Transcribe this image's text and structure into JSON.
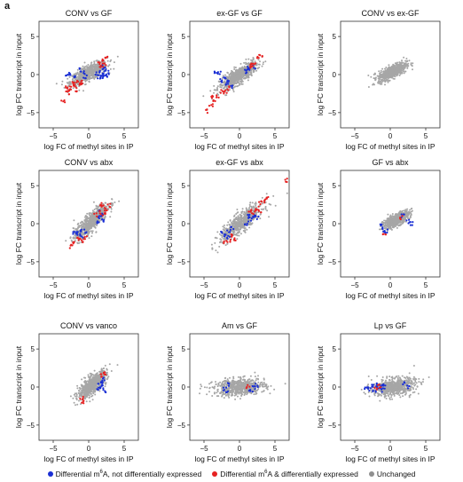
{
  "panel_label": "a",
  "chart_data": [
    {
      "type": "scatter",
      "title": "CONV vs GF",
      "xlabel": "log FC of methyl sites in IP",
      "ylabel": "log FC transcript in input",
      "xlim": [
        -7,
        7
      ],
      "ylim": [
        -7,
        7
      ],
      "xticks": [
        -5,
        0,
        5
      ],
      "yticks": [
        -5,
        0,
        5
      ],
      "series": [
        {
          "name": "Unchanged",
          "cloud": {
            "cx": 0,
            "cy": 0.2,
            "sx": 1.3,
            "sy": 0.75,
            "corr": 0.75
          }
        },
        {
          "name": "Differential m6A, not differentially expressed",
          "points": [
            [
              1.6,
              0.4
            ],
            [
              2,
              0.2
            ],
            [
              1.8,
              -0.2
            ],
            [
              2.2,
              0.6
            ],
            [
              1.5,
              -0.5
            ],
            [
              2.4,
              -0.1
            ],
            [
              -0.8,
              0.3
            ],
            [
              -1.2,
              0.6
            ],
            [
              -2.6,
              0.1
            ],
            [
              -1.9,
              -0.3
            ],
            [
              1.2,
              0.1
            ],
            [
              2.1,
              1
            ],
            [
              2.6,
              0.3
            ],
            [
              -3,
              -0.2
            ],
            [
              -0.5,
              -0.3
            ],
            [
              1.9,
              -0.4
            ]
          ]
        },
        {
          "name": "Differential m6A & differentially expressed",
          "points": [
            [
              -3.6,
              -3.4
            ],
            [
              -3,
              -2.4
            ],
            [
              -2.5,
              -1.8
            ],
            [
              -2.2,
              -1.2
            ],
            [
              -2,
              -1.6
            ],
            [
              -1.5,
              -1
            ],
            [
              -1.2,
              -1.3
            ],
            [
              -1.8,
              -2
            ],
            [
              -2.8,
              -2.2
            ],
            [
              1.5,
              1.5
            ],
            [
              2,
              1.8
            ],
            [
              2.5,
              2.2
            ],
            [
              1.8,
              1.2
            ],
            [
              2.2,
              1.5
            ],
            [
              -3.2,
              -1.6
            ],
            [
              -1,
              -0.9
            ]
          ]
        }
      ]
    },
    {
      "type": "scatter",
      "title": "ex-GF vs GF",
      "xlabel": "log FC of methyl sites in IP",
      "ylabel": "log FC transcript in input",
      "xlim": [
        -7,
        7
      ],
      "ylim": [
        -7,
        7
      ],
      "xticks": [
        -5,
        0,
        5
      ],
      "yticks": [
        -5,
        0,
        5
      ],
      "series": [
        {
          "name": "Unchanged",
          "cloud": {
            "cx": -0.2,
            "cy": -0.2,
            "sx": 1.3,
            "sy": 0.9,
            "corr": 0.8
          }
        },
        {
          "name": "Differential m6A, not differentially expressed",
          "points": [
            [
              -2,
              -0.5
            ],
            [
              -1.5,
              -1
            ],
            [
              -2.5,
              -0.8
            ],
            [
              -1,
              -1.5
            ],
            [
              1.5,
              0.6
            ],
            [
              2,
              1
            ],
            [
              1.2,
              0.8
            ],
            [
              -2.8,
              0.2
            ],
            [
              -3.3,
              0.4
            ],
            [
              -1.8,
              -1.2
            ],
            [
              1,
              0.4
            ]
          ]
        },
        {
          "name": "Differential m6A & differentially expressed",
          "points": [
            [
              -4,
              -4
            ],
            [
              -3.5,
              -3.5
            ],
            [
              -3,
              -2.8
            ],
            [
              -2.5,
              -2.2
            ],
            [
              -4.5,
              -4.8
            ],
            [
              -3.8,
              -3
            ],
            [
              -2,
              -2.3
            ],
            [
              1.5,
              1.2
            ],
            [
              2,
              1.5
            ],
            [
              2.5,
              2.2
            ],
            [
              3,
              2.5
            ],
            [
              1.8,
              1
            ],
            [
              -1.5,
              -1.8
            ]
          ]
        }
      ]
    },
    {
      "type": "scatter",
      "title": "CONV vs ex-GF",
      "xlabel": "log FC of methyl sites in IP",
      "ylabel": "log FC transcript in input",
      "xlim": [
        -7,
        7
      ],
      "ylim": [
        -7,
        7
      ],
      "xticks": [
        -5,
        0,
        5
      ],
      "yticks": [
        -5,
        0,
        5
      ],
      "series": [
        {
          "name": "Unchanged",
          "cloud": {
            "cx": 0.3,
            "cy": 0.4,
            "sx": 1,
            "sy": 0.6,
            "corr": 0.7
          }
        },
        {
          "name": "Differential m6A, not differentially expressed",
          "points": []
        },
        {
          "name": "Differential m6A & differentially expressed",
          "points": []
        }
      ]
    },
    {
      "type": "scatter",
      "title": "CONV vs abx",
      "xlabel": "log FC of methyl sites in IP",
      "ylabel": "log FC transcript in input",
      "xlim": [
        -7,
        7
      ],
      "ylim": [
        -7,
        7
      ],
      "xticks": [
        -5,
        0,
        5
      ],
      "yticks": [
        -5,
        0,
        5
      ],
      "series": [
        {
          "name": "Unchanged",
          "cloud": {
            "cx": 0.3,
            "cy": 0.2,
            "sx": 1.2,
            "sy": 1.2,
            "corr": 0.85
          }
        },
        {
          "name": "Differential m6A, not differentially expressed",
          "points": [
            [
              -1,
              -0.8
            ],
            [
              -1.5,
              -1.3
            ],
            [
              -1,
              -1.6
            ],
            [
              -0.5,
              -1
            ],
            [
              1.5,
              0.8
            ],
            [
              1.8,
              1.2
            ],
            [
              2,
              0.5
            ],
            [
              1.2,
              0.2
            ],
            [
              -2,
              -1.2
            ],
            [
              1.6,
              1.5
            ]
          ]
        },
        {
          "name": "Differential m6A & differentially expressed",
          "points": [
            [
              1.5,
              1.5
            ],
            [
              2,
              2.2
            ],
            [
              2.5,
              1.8
            ],
            [
              1.8,
              2.5
            ],
            [
              2.2,
              1.3
            ],
            [
              1,
              1.2
            ],
            [
              -1.5,
              -2
            ],
            [
              -2,
              -2.5
            ],
            [
              -2.5,
              -3
            ],
            [
              -1,
              -2.2
            ],
            [
              -0.5,
              -1.8
            ],
            [
              2.8,
              2.4
            ]
          ]
        }
      ]
    },
    {
      "type": "scatter",
      "title": "ex-GF vs abx",
      "xlabel": "log FC of methyl sites in IP",
      "ylabel": "log FC transcript in input",
      "xlim": [
        -7,
        7
      ],
      "ylim": [
        -7,
        7
      ],
      "xticks": [
        -5,
        0,
        5
      ],
      "yticks": [
        -5,
        0,
        5
      ],
      "series": [
        {
          "name": "Unchanged",
          "cloud": {
            "cx": 0.3,
            "cy": 0.2,
            "sx": 1.5,
            "sy": 1.2,
            "corr": 0.85
          }
        },
        {
          "name": "Differential m6A, not differentially expressed",
          "points": [
            [
              -1.5,
              -1
            ],
            [
              -2,
              -1.5
            ],
            [
              -1,
              -0.5
            ],
            [
              1.5,
              0.5
            ],
            [
              2,
              1
            ],
            [
              1,
              0
            ],
            [
              -1.5,
              -1.8
            ],
            [
              2.5,
              0.8
            ],
            [
              -2.5,
              -1.2
            ],
            [
              1.2,
              1
            ]
          ]
        },
        {
          "name": "Differential m6A & differentially expressed",
          "points": [
            [
              2,
              1.5
            ],
            [
              2.5,
              2
            ],
            [
              3,
              2.8
            ],
            [
              3.5,
              3
            ],
            [
              4,
              3.5
            ],
            [
              1.5,
              1.8
            ],
            [
              -1,
              -1.5
            ],
            [
              -1.5,
              -2.3
            ],
            [
              -2,
              -2.5
            ],
            [
              6.5,
              5.7
            ],
            [
              -0.5,
              -2
            ],
            [
              2.8,
              1.7
            ]
          ]
        }
      ]
    },
    {
      "type": "scatter",
      "title": "GF vs abx",
      "xlabel": "log FC of methyl sites in IP",
      "ylabel": "log FC transcript in input",
      "xlim": [
        -7,
        7
      ],
      "ylim": [
        -7,
        7
      ],
      "xticks": [
        -5,
        0,
        5
      ],
      "yticks": [
        -5,
        0,
        5
      ],
      "series": [
        {
          "name": "Unchanged",
          "cloud": {
            "cx": 0.8,
            "cy": 0.5,
            "sx": 0.9,
            "sy": 0.55,
            "corr": 0.7
          }
        },
        {
          "name": "Differential m6A, not differentially expressed",
          "points": [
            [
              -1.2,
              -0.3
            ],
            [
              -1,
              -0.8
            ],
            [
              2.5,
              0.3
            ],
            [
              1.8,
              1
            ],
            [
              -0.5,
              -1
            ],
            [
              3,
              0
            ]
          ]
        },
        {
          "name": "Differential m6A & differentially expressed",
          "points": [
            [
              1.6,
              0.8
            ],
            [
              -0.8,
              -1.3
            ]
          ]
        }
      ]
    },
    {
      "type": "scatter",
      "title": "CONV vs vanco",
      "xlabel": "log FC of methyl sites in IP",
      "ylabel": "log FC transcript in input",
      "xlim": [
        -7,
        7
      ],
      "ylim": [
        -7,
        7
      ],
      "xticks": [
        -5,
        0,
        5
      ],
      "yticks": [
        -5,
        0,
        5
      ],
      "series": [
        {
          "name": "Unchanged",
          "cloud": {
            "cx": 0.5,
            "cy": 0.3,
            "sx": 1,
            "sy": 0.9,
            "corr": 0.75
          }
        },
        {
          "name": "Differential m6A, not differentially expressed",
          "points": [
            [
              1.5,
              0.5
            ],
            [
              2,
              1
            ],
            [
              1.8,
              0
            ],
            [
              2.2,
              -0.5
            ],
            [
              1.4,
              -0.2
            ],
            [
              2,
              0.4
            ]
          ]
        },
        {
          "name": "Differential m6A & differentially expressed",
          "points": [
            [
              1.8,
              1.5
            ],
            [
              2.2,
              1.8
            ],
            [
              -1,
              -1.5
            ],
            [
              -0.8,
              -2
            ]
          ]
        }
      ]
    },
    {
      "type": "scatter",
      "title": "Am vs GF",
      "xlabel": "log FC of methyl sites in IP",
      "ylabel": "log FC transcript in input",
      "xlim": [
        -7,
        7
      ],
      "ylim": [
        -7,
        7
      ],
      "xticks": [
        -5,
        0,
        5
      ],
      "yticks": [
        -5,
        0,
        5
      ],
      "series": [
        {
          "name": "Unchanged",
          "cloud": {
            "cx": 0,
            "cy": 0,
            "sx": 1.8,
            "sy": 0.55,
            "corr": 0.2
          }
        },
        {
          "name": "Differential m6A, not differentially expressed",
          "points": [
            [
              -2,
              -0.2
            ],
            [
              -1.5,
              0.3
            ],
            [
              2,
              -0.1
            ],
            [
              1.6,
              -0.4
            ],
            [
              -1.8,
              -0.6
            ],
            [
              2.4,
              0.2
            ]
          ]
        },
        {
          "name": "Differential m6A & differentially expressed",
          "points": [
            [
              1.2,
              0.1
            ]
          ]
        }
      ]
    },
    {
      "type": "scatter",
      "title": "Lp vs GF",
      "xlabel": "log FC of methyl sites in IP",
      "ylabel": "log FC transcript in input",
      "xlim": [
        -7,
        7
      ],
      "ylim": [
        -7,
        7
      ],
      "xticks": [
        -5,
        0,
        5
      ],
      "yticks": [
        -5,
        0,
        5
      ],
      "series": [
        {
          "name": "Unchanged",
          "cloud": {
            "cx": 0.5,
            "cy": 0,
            "sx": 1.5,
            "sy": 0.6,
            "corr": 0.3
          }
        },
        {
          "name": "Differential m6A, not differentially expressed",
          "points": [
            [
              -2,
              -0.1
            ],
            [
              -1.5,
              -0.2
            ],
            [
              -2.5,
              0.1
            ],
            [
              -1.8,
              0.3
            ],
            [
              -1,
              -0.4
            ],
            [
              -3,
              -0.3
            ],
            [
              -1.3,
              0
            ],
            [
              2.5,
              0
            ],
            [
              -2.2,
              -0.5
            ],
            [
              -0.8,
              0.2
            ],
            [
              -3.5,
              -0.2
            ],
            [
              2,
              0.4
            ]
          ]
        },
        {
          "name": "Differential m6A & differentially expressed",
          "points": [
            [
              -2,
              -0.3
            ],
            [
              -1.5,
              0.1
            ]
          ]
        }
      ]
    }
  ],
  "legend": [
    {
      "label": "Differential m",
      "sup": "6",
      "label2": "A, not differentially expressed",
      "color": "#1a2fd4"
    },
    {
      "label": "Differential m",
      "sup": "6",
      "label2": "A & differentially expressed",
      "color": "#e62222"
    },
    {
      "label": "Unchanged",
      "sup": "",
      "label2": "",
      "color": "#8f8f8f"
    }
  ],
  "colors": {
    "unchanged": "#a6a6a6",
    "blue": "#1a2fd4",
    "red": "#e62222"
  }
}
